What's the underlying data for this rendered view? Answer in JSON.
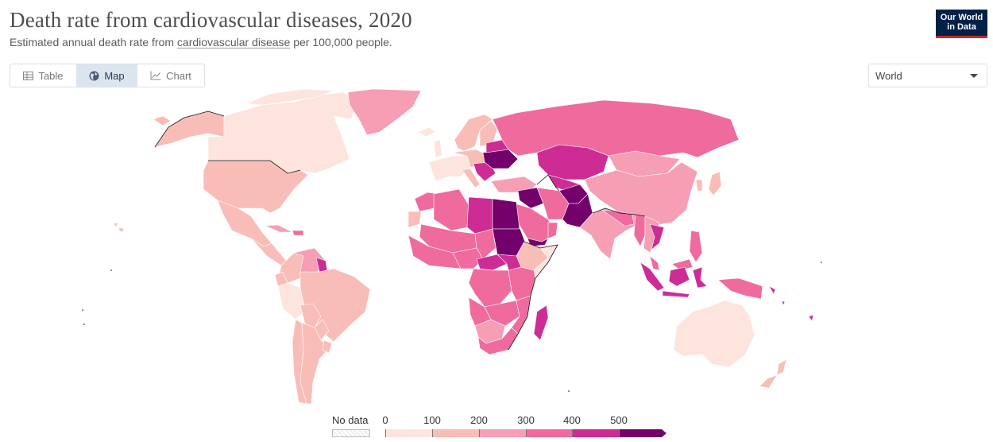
{
  "title": "Death rate from cardiovascular diseases, 2020",
  "subtitle": {
    "prefix": "Estimated annual death rate from ",
    "link": "cardiovascular disease",
    "suffix": " per 100,000 people."
  },
  "logo": {
    "line1": "Our World",
    "line2": "in Data"
  },
  "tabs": [
    {
      "label": "Table",
      "icon": "table-icon",
      "active": false
    },
    {
      "label": "Map",
      "icon": "globe-icon",
      "active": true
    },
    {
      "label": "Chart",
      "icon": "line-chart-icon",
      "active": false
    }
  ],
  "region_select": {
    "value": "World"
  },
  "colors": {
    "bin0": "#fde5dd",
    "bin1": "#f9bdb7",
    "bin2": "#f59eb4",
    "bin3": "#f06b9d",
    "bin4": "#cd2c95",
    "bin5": "#73006b",
    "ocean": "#ffffff",
    "border": "#ffffff"
  },
  "legend": {
    "no_data_label": "No data",
    "ticks": [
      "0",
      "100",
      "200",
      "300",
      "400",
      "500"
    ],
    "bins": [
      {
        "from": 0,
        "to": 100
      },
      {
        "from": 100,
        "to": 200
      },
      {
        "from": 200,
        "to": 300
      },
      {
        "from": 300,
        "to": 400
      },
      {
        "from": 400,
        "to": 500
      },
      {
        "from": 500,
        "to": null
      }
    ]
  }
}
